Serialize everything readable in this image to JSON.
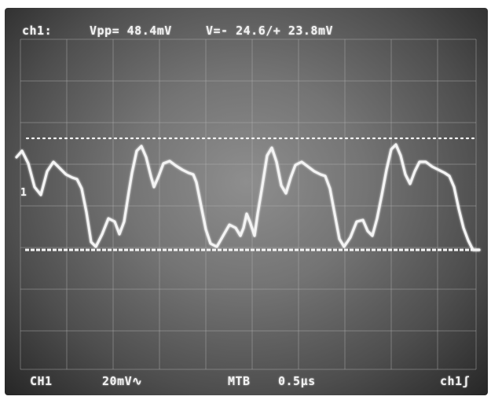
{
  "header": {
    "channel": "ch1:",
    "vpp": "Vpp= 48.4mV",
    "vrange": "V=- 24.6/+ 23.8mV"
  },
  "marker": {
    "label": "1"
  },
  "footer": {
    "channel": "CH1",
    "vdiv": "20mV∿",
    "timebase_label": "MTB",
    "timebase_value": "0.5µs",
    "trigger": "ch1ʃ"
  },
  "colors": {
    "trace": "#f4f4f4",
    "grid": "#b4b4b4",
    "screen": "#747474"
  }
}
